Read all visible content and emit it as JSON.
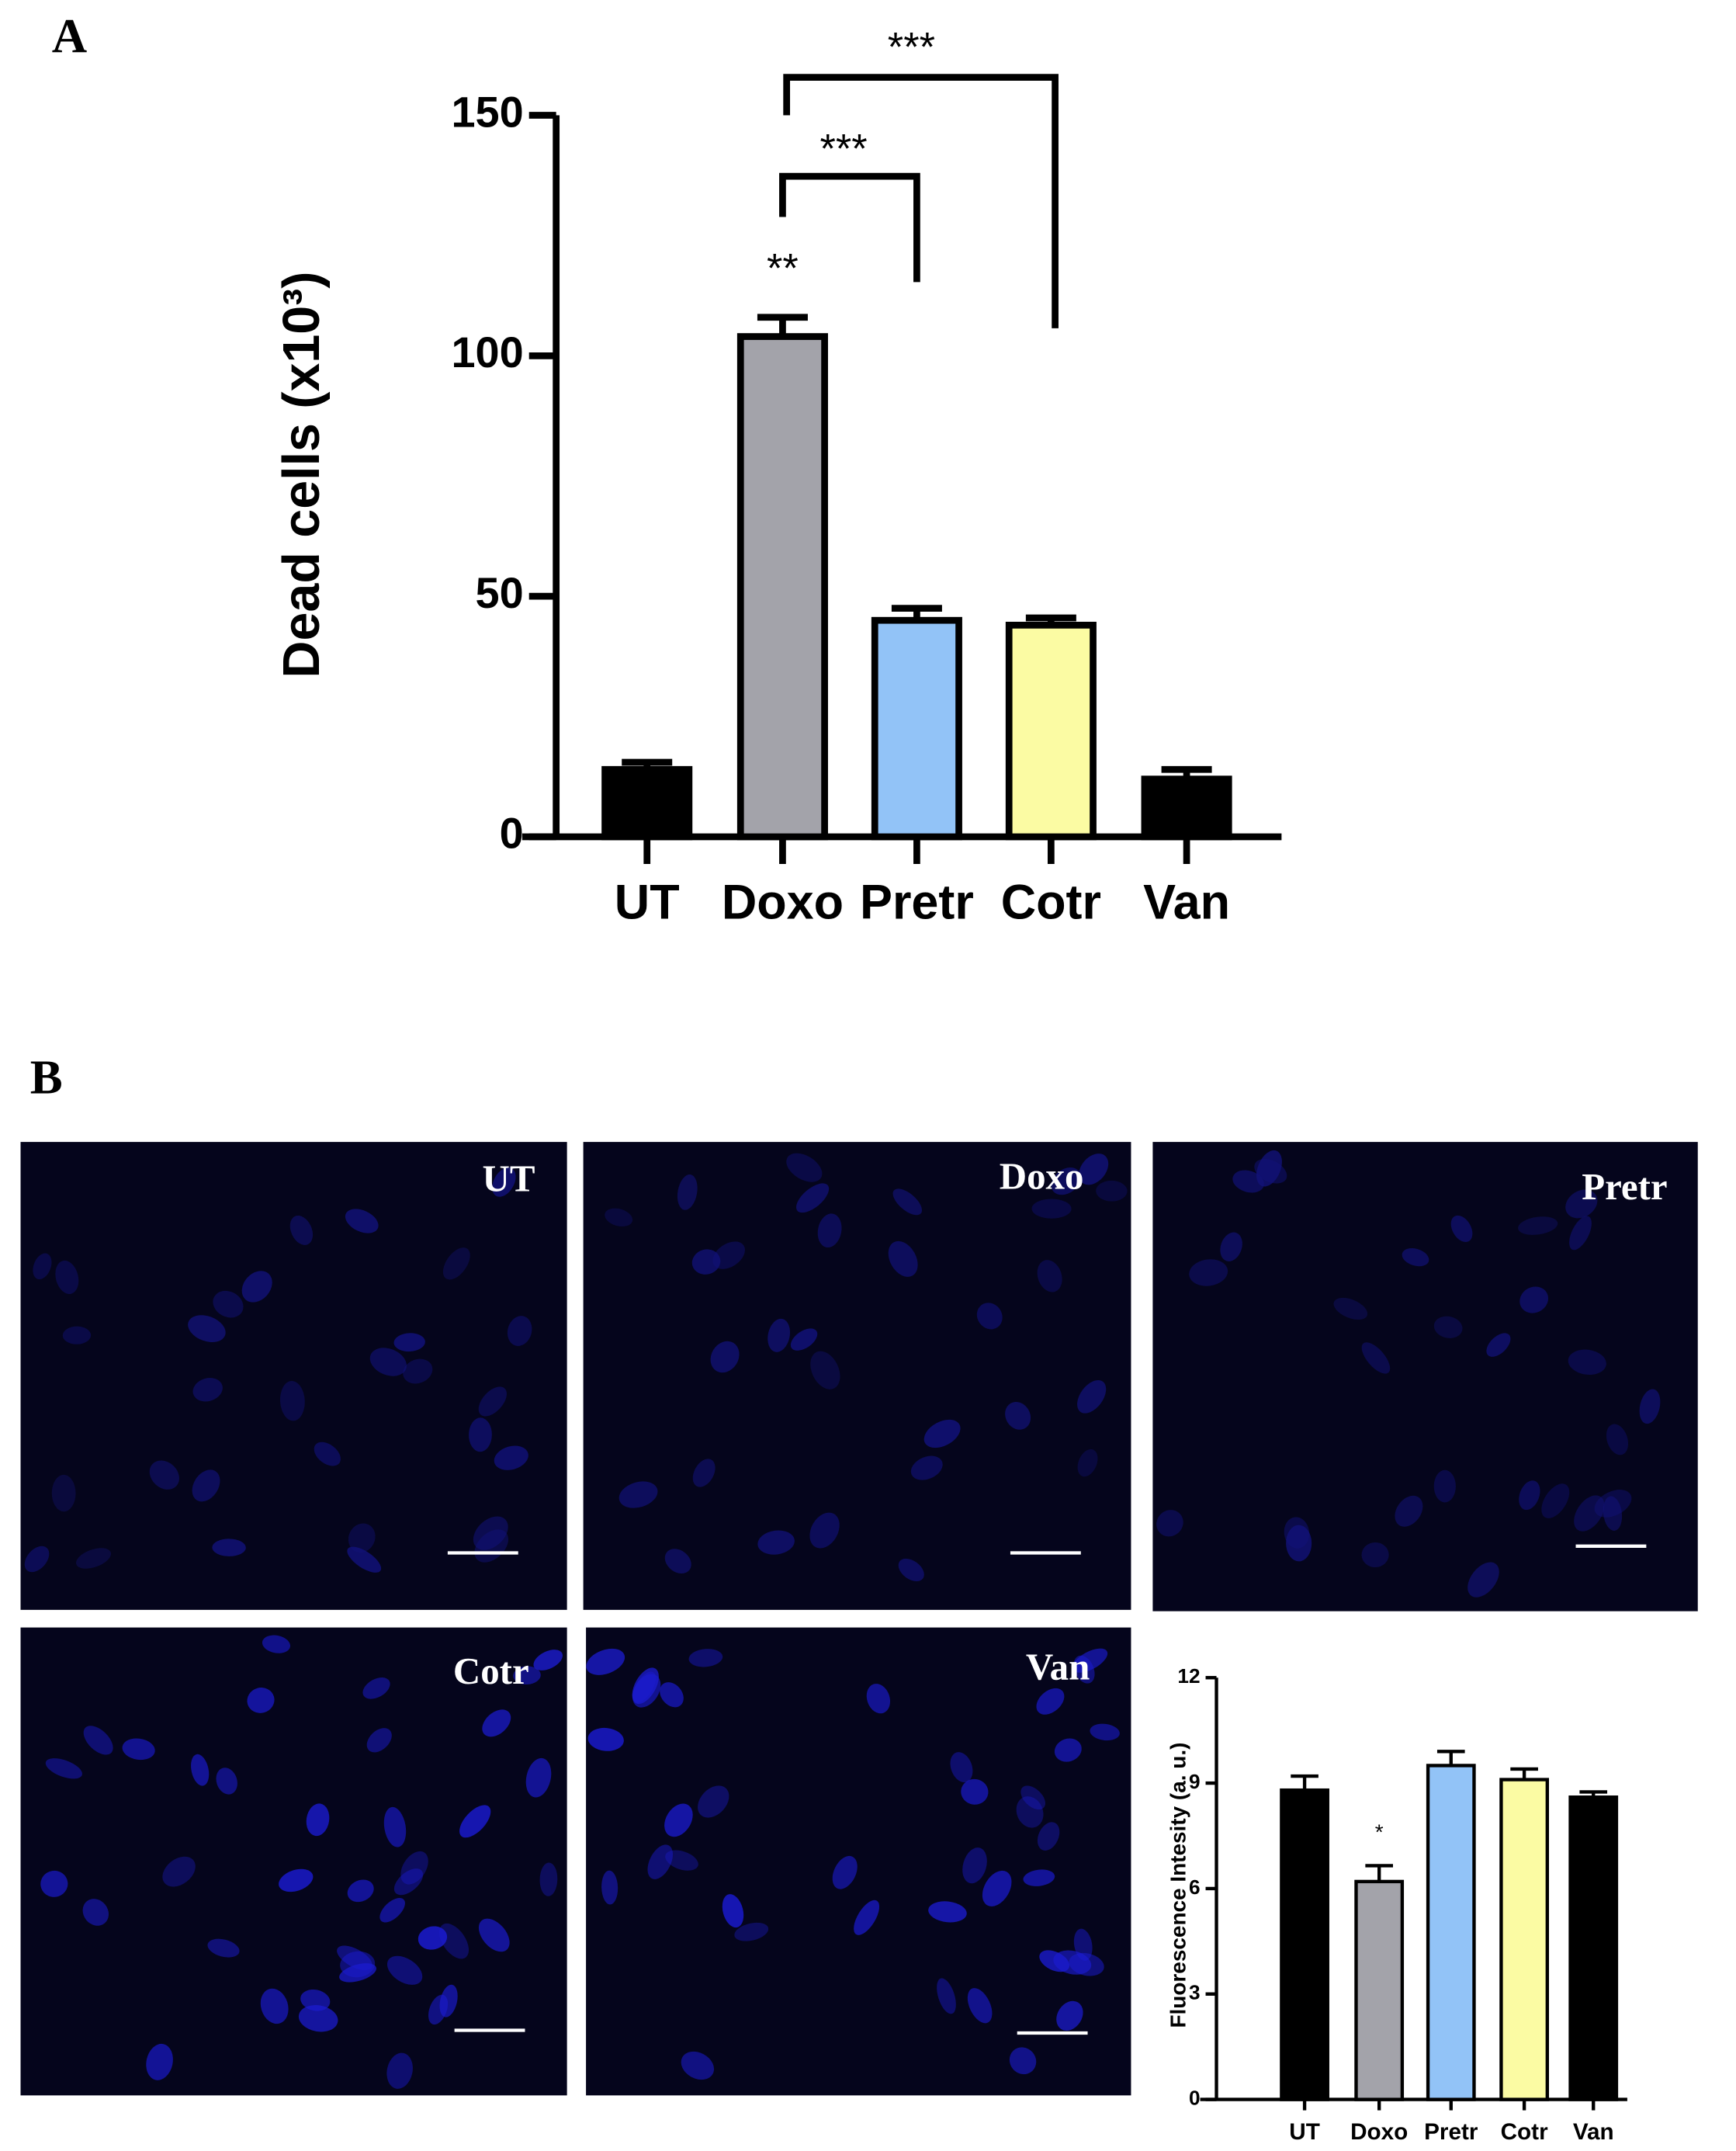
{
  "panels": [
    "A",
    "B"
  ],
  "micrographs": [
    "UT",
    "Doxo",
    "Pretr",
    "Cotr",
    "Van"
  ],
  "chart_data": [
    {
      "type": "bar",
      "y_label": "Dead cells (x10³)",
      "categories": [
        "UT",
        "Doxo",
        "Pretr",
        "Cotr",
        "Van"
      ],
      "values": [
        14,
        104,
        45,
        44,
        12
      ],
      "errors": [
        1.5,
        4,
        2.5,
        1.5,
        2
      ],
      "colors": [
        "#000000",
        "#a3a3aa",
        "#92c3f7",
        "#fbfba3",
        "#000000"
      ],
      "ylim": [
        0,
        150
      ],
      "yticks": [
        0,
        50,
        100,
        150
      ],
      "annotations": [
        "**",
        "***",
        "***"
      ]
    },
    {
      "type": "bar",
      "y_label": "Fluorescence Intesity (a. u.)",
      "categories": [
        "UT",
        "Doxo",
        "Pretr",
        "Cotr",
        "Van"
      ],
      "values": [
        8.8,
        6.2,
        9.5,
        9.1,
        8.6
      ],
      "errors": [
        0.4,
        0.45,
        0.4,
        0.3,
        0.15
      ],
      "colors": [
        "#000000",
        "#a3a3aa",
        "#92c3f7",
        "#fbfba3",
        "#000000"
      ],
      "ylim": [
        0,
        12
      ],
      "yticks": [
        0,
        3,
        6,
        9,
        12
      ],
      "annotations": [
        "*"
      ]
    }
  ]
}
